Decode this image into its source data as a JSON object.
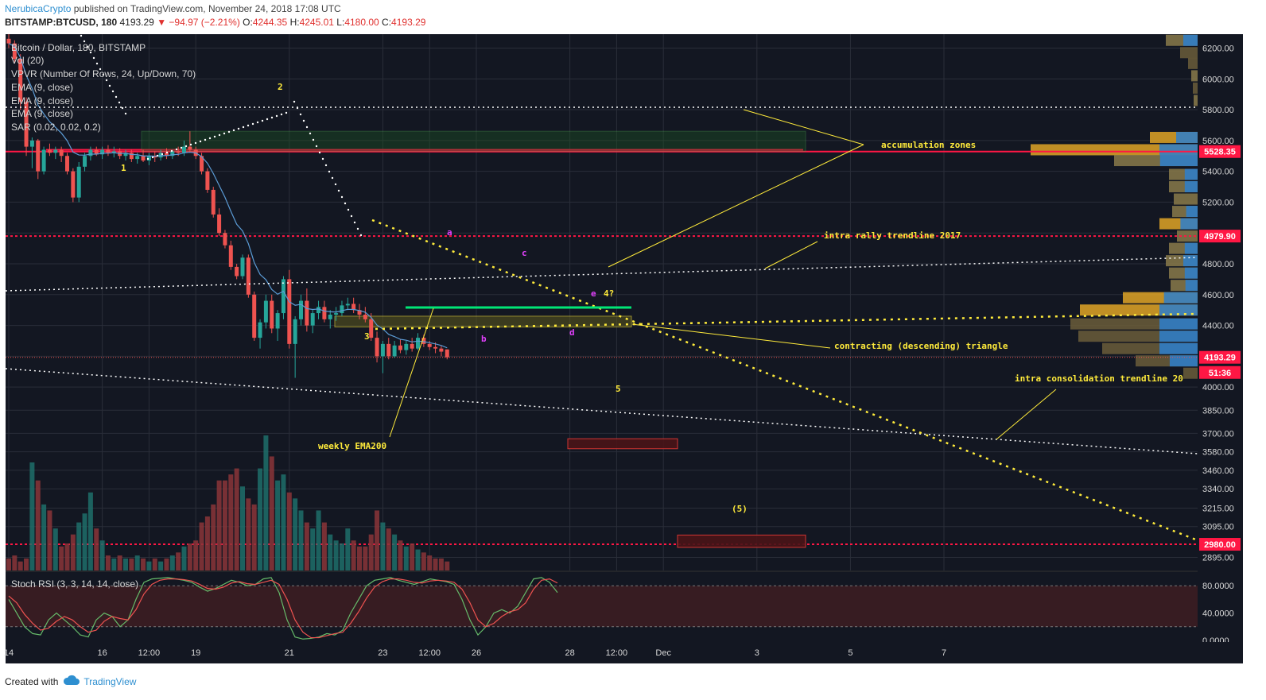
{
  "header": {
    "author": "NerubicaCrypto",
    "published": "published on TradingView.com, November 24, 2018 17:08 UTC",
    "symbol": "BITSTAMP:BTCUSD, 180",
    "last": "4193.29",
    "change": "▼ −94.97 (−2.21%)",
    "o_label": "O:",
    "o": "4244.35",
    "h_label": "H:",
    "h": "4245.01",
    "l_label": "L:",
    "l": "4180.00",
    "c_label": "C:",
    "c": "4193.29"
  },
  "legend": [
    "Bitcoin / Dollar, 180, BITSTAMP",
    "Vol (20)",
    "VPVR (Number Of Rows, 24, Up/Down, 70)",
    "EMA (9, close)",
    "EMA (9, close)",
    "EMA (9, close)",
    "SAR (0.02, 0.02, 0.2)"
  ],
  "oscillator_label": "Stoch RSI (3, 3, 14, 14, close)",
  "footer": {
    "created_with": "Created with",
    "brand": "TradingView"
  },
  "colors": {
    "background": "#131722",
    "up": "#26a69a",
    "down": "#ef5350",
    "annotation": "#ffeb3b",
    "wave_letters": "#e040fb",
    "level_red": "#ff1744",
    "stoch_k": "#66bb6a",
    "stoch_d": "#ef5350"
  },
  "chart_data": {
    "type": "candlestick",
    "y_range": [
      2810,
      6290
    ],
    "y_ticks": [
      6200,
      6000,
      5800,
      5600,
      5400,
      5200,
      5000,
      4800,
      4600,
      4400,
      4200,
      4000,
      3850,
      3700,
      3580,
      3460,
      3340,
      3215,
      3095,
      2895
    ],
    "y_tick_labels": [
      "6200.00",
      "6000.00",
      "5800.00",
      "5600.00",
      "5400.00",
      "5200.00",
      "5000.00",
      "4800.00",
      "4600.00",
      "4400.00",
      "4200.00",
      "4000.00",
      "3850.00",
      "3700.00",
      "3580.00",
      "3460.00",
      "3340.00",
      "3215.00",
      "3095.00",
      "2895.00"
    ],
    "x_ticks": [
      "14",
      "16",
      "12:00",
      "19",
      "21",
      "23",
      "12:00",
      "26",
      "28",
      "12:00",
      "Dec",
      "3",
      "5",
      "7"
    ],
    "x_tick_index": [
      0,
      16,
      24,
      32,
      48,
      64,
      72,
      80,
      96,
      104,
      112,
      128,
      144,
      160
    ],
    "price_tags": [
      {
        "label": "5528.35",
        "value": 5528.35,
        "color": "#ff1744"
      },
      {
        "label": "4979.90",
        "value": 4979.9,
        "color": "#ff1744"
      },
      {
        "label": "4193.29",
        "value": 4193.29,
        "color": "#ff1744"
      },
      {
        "label": "51:36",
        "value": 4095,
        "color": "#ff1744"
      },
      {
        "label": "2980.00",
        "value": 2980,
        "color": "#ff1744"
      }
    ],
    "horizontal_levels": [
      5528.35,
      4979.9,
      2980
    ],
    "candles": [
      [
        6260,
        6290,
        6200,
        6230
      ],
      [
        6230,
        6250,
        6100,
        6130
      ],
      [
        6130,
        6160,
        5800,
        5850
      ],
      [
        5850,
        5880,
        5500,
        5560
      ],
      [
        5560,
        5620,
        5420,
        5600
      ],
      [
        5600,
        5610,
        5350,
        5400
      ],
      [
        5400,
        5560,
        5380,
        5540
      ],
      [
        5540,
        5580,
        5500,
        5520
      ],
      [
        5520,
        5560,
        5480,
        5540
      ],
      [
        5540,
        5560,
        5460,
        5500
      ],
      [
        5500,
        5520,
        5380,
        5400
      ],
      [
        5400,
        5420,
        5200,
        5230
      ],
      [
        5230,
        5460,
        5200,
        5430
      ],
      [
        5430,
        5520,
        5400,
        5500
      ],
      [
        5500,
        5560,
        5470,
        5540
      ],
      [
        5540,
        5560,
        5500,
        5510
      ],
      [
        5510,
        5560,
        5480,
        5540
      ],
      [
        5540,
        5570,
        5500,
        5520
      ],
      [
        5520,
        5560,
        5490,
        5530
      ],
      [
        5530,
        5550,
        5480,
        5500
      ],
      [
        5500,
        5540,
        5470,
        5520
      ],
      [
        5520,
        5540,
        5460,
        5480
      ],
      [
        5480,
        5520,
        5450,
        5500
      ],
      [
        5500,
        5540,
        5460,
        5470
      ],
      [
        5470,
        5520,
        5440,
        5500
      ],
      [
        5500,
        5530,
        5460,
        5490
      ],
      [
        5490,
        5540,
        5470,
        5520
      ],
      [
        5520,
        5550,
        5480,
        5500
      ],
      [
        5500,
        5540,
        5480,
        5530
      ],
      [
        5530,
        5560,
        5500,
        5520
      ],
      [
        5520,
        5600,
        5500,
        5560
      ],
      [
        5560,
        5660,
        5520,
        5540
      ],
      [
        5540,
        5560,
        5480,
        5500
      ],
      [
        5500,
        5520,
        5380,
        5400
      ],
      [
        5400,
        5420,
        5260,
        5280
      ],
      [
        5280,
        5300,
        5100,
        5120
      ],
      [
        5120,
        5160,
        4980,
        5000
      ],
      [
        5000,
        5020,
        4900,
        4920
      ],
      [
        4920,
        4950,
        4760,
        4780
      ],
      [
        4780,
        4800,
        4700,
        4720
      ],
      [
        4720,
        4860,
        4700,
        4840
      ],
      [
        4840,
        4860,
        4580,
        4600
      ],
      [
        4600,
        4620,
        4300,
        4320
      ],
      [
        4320,
        4440,
        4250,
        4420
      ],
      [
        4420,
        4600,
        4380,
        4560
      ],
      [
        4560,
        4600,
        4350,
        4380
      ],
      [
        4380,
        4500,
        4300,
        4480
      ],
      [
        4480,
        4720,
        4440,
        4700
      ],
      [
        4700,
        4760,
        4250,
        4280
      ],
      [
        4280,
        4460,
        4060,
        4440
      ],
      [
        4440,
        4600,
        4400,
        4560
      ],
      [
        4560,
        4640,
        4360,
        4400
      ],
      [
        4400,
        4500,
        4350,
        4480
      ],
      [
        4480,
        4560,
        4440,
        4520
      ],
      [
        4520,
        4560,
        4420,
        4440
      ],
      [
        4440,
        4500,
        4380,
        4470
      ],
      [
        4470,
        4520,
        4430,
        4480
      ],
      [
        4480,
        4560,
        4460,
        4530
      ],
      [
        4530,
        4580,
        4500,
        4540
      ],
      [
        4540,
        4580,
        4480,
        4500
      ],
      [
        4500,
        4540,
        4440,
        4470
      ],
      [
        4470,
        4520,
        4420,
        4440
      ],
      [
        4440,
        4480,
        4300,
        4320
      ],
      [
        4320,
        4360,
        4160,
        4200
      ],
      [
        4200,
        4300,
        4090,
        4280
      ],
      [
        4280,
        4320,
        4180,
        4200
      ],
      [
        4200,
        4300,
        4190,
        4270
      ],
      [
        4270,
        4310,
        4220,
        4240
      ],
      [
        4240,
        4300,
        4210,
        4280
      ],
      [
        4280,
        4320,
        4230,
        4250
      ],
      [
        4250,
        4350,
        4240,
        4320
      ],
      [
        4320,
        4340,
        4260,
        4280
      ],
      [
        4280,
        4300,
        4240,
        4260
      ],
      [
        4260,
        4290,
        4220,
        4250
      ],
      [
        4250,
        4270,
        4200,
        4230
      ],
      [
        4244.35,
        4245.01,
        4180,
        4193.29
      ]
    ],
    "volume": [
      4,
      5,
      3,
      4,
      36,
      30,
      22,
      20,
      14,
      8,
      9,
      12,
      16,
      19,
      26,
      14,
      10,
      5,
      4,
      5,
      4,
      4,
      5,
      4,
      3,
      4,
      3,
      4,
      5,
      6,
      8,
      9,
      10,
      16,
      18,
      22,
      30,
      30,
      32,
      34,
      28,
      24,
      22,
      34,
      45,
      38,
      30,
      32,
      26,
      24,
      20,
      16,
      14,
      20,
      16,
      12,
      10,
      9,
      14,
      10,
      8,
      8,
      12,
      20,
      16,
      14,
      12,
      10,
      8,
      9,
      7,
      6,
      5,
      4,
      4,
      3
    ],
    "stoch_rsi_range": [
      0,
      100
    ],
    "stoch_rsi_ticks": [
      80.0,
      40.0,
      0.0
    ],
    "stoch_rsi_tick_labels": [
      "80.0000",
      "40.0000",
      "0.0000"
    ],
    "stoch_k": [
      60,
      40,
      20,
      10,
      8,
      30,
      40,
      30,
      20,
      8,
      5,
      30,
      40,
      35,
      20,
      30,
      60,
      85,
      90,
      91,
      92,
      90,
      88,
      85,
      78,
      72,
      76,
      82,
      88,
      85,
      80,
      82,
      90,
      92,
      70,
      30,
      5,
      2,
      3,
      5,
      10,
      8,
      15,
      40,
      60,
      80,
      88,
      90,
      92,
      88,
      85,
      82,
      86,
      90,
      88,
      86,
      82,
      60,
      30,
      8,
      20,
      40,
      45,
      40,
      50,
      70,
      90,
      92,
      85,
      70
    ],
    "stoch_d": [
      65,
      55,
      38,
      25,
      15,
      18,
      28,
      35,
      30,
      20,
      12,
      15,
      28,
      35,
      32,
      30,
      45,
      68,
      82,
      88,
      90,
      90,
      89,
      87,
      82,
      76,
      75,
      78,
      84,
      86,
      83,
      82,
      85,
      88,
      82,
      60,
      30,
      12,
      4,
      4,
      7,
      10,
      12,
      25,
      42,
      62,
      78,
      86,
      90,
      90,
      88,
      85,
      84,
      87,
      88,
      87,
      85,
      75,
      55,
      30,
      20,
      25,
      35,
      42,
      45,
      55,
      75,
      88,
      90,
      84
    ]
  },
  "annotations": {
    "accumulation": "accumulation zones",
    "intra_rally": "intra rally trendline 2017",
    "triangle": "contracting (descending) triangle",
    "intra_cons": "intra consolidation trendline 20",
    "weekly": "weekly EMA200",
    "wave1": "1",
    "wave2": "2",
    "wave3": "3",
    "wave4": "4?",
    "wave5": "5",
    "wave5b": "(5)",
    "a": "a",
    "b": "b",
    "c": "c",
    "d": "d",
    "e": "e"
  }
}
